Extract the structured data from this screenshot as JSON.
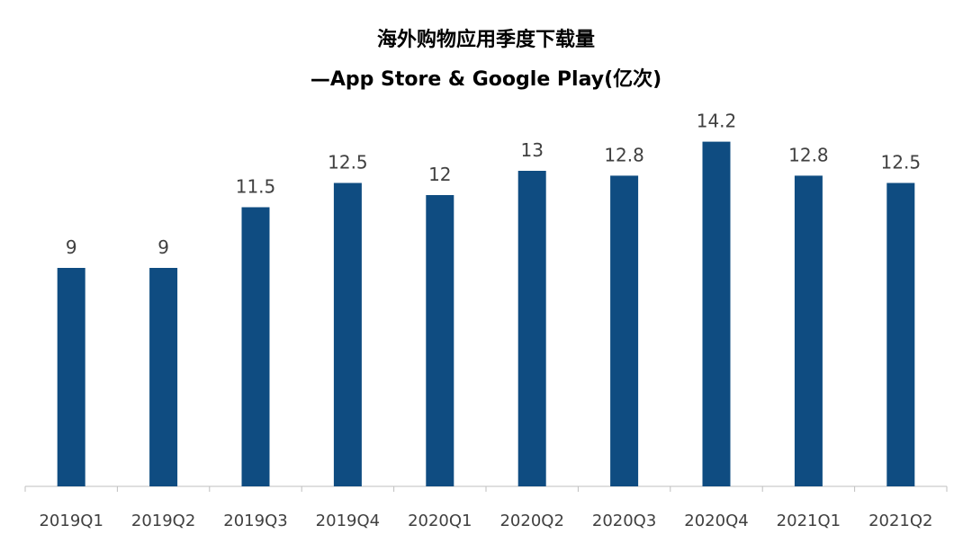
{
  "chart_data": {
    "type": "bar",
    "title": "海外购物应用季度下载量",
    "subtitle": "—App Store & Google Play(亿次)",
    "categories": [
      "2019Q1",
      "2019Q2",
      "2019Q3",
      "2019Q4",
      "2020Q1",
      "2020Q2",
      "2020Q3",
      "2020Q4",
      "2021Q1",
      "2021Q2"
    ],
    "values": [
      9,
      9,
      11.5,
      12.5,
      12,
      13,
      12.8,
      14.2,
      12.8,
      12.5
    ],
    "value_labels": [
      "9",
      "9",
      "11.5",
      "12.5",
      "12",
      "13",
      "12.8",
      "14.2",
      "12.8",
      "12.5"
    ],
    "xlabel": "",
    "ylabel": "",
    "ylim": [
      0,
      15.2
    ],
    "grid": false,
    "legend": "none",
    "bar_color": "#0F4C81",
    "axis_color": "#BFBFBF"
  }
}
